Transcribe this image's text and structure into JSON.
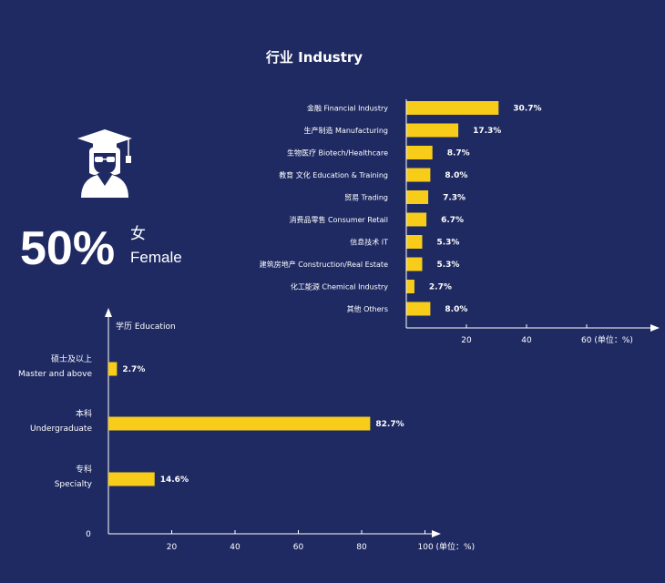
{
  "palette": {
    "background": "#1f2a63",
    "bar": "#f7cd1a",
    "text": "#ffffff"
  },
  "icon": "graduate-icon",
  "gender": {
    "percent": "50%",
    "label_cn": "女",
    "label_en": "Female"
  },
  "chart_data": [
    {
      "type": "bar",
      "orientation": "horizontal",
      "title": "行业  Industry",
      "categories": [
        "金融 Financial Industry",
        "生产制造 Manufacturing",
        "生物医疗 Biotech/Healthcare",
        "教育 文化  Education & Training",
        "贸易 Trading",
        "消费品零售 Consumer Retail",
        "信息技术 IT",
        "建筑房地产 Construction/Real Estate",
        "化工能源 Chemical Industry",
        "其他 Others"
      ],
      "values": [
        30.7,
        17.3,
        8.7,
        8.0,
        7.3,
        6.7,
        5.3,
        5.3,
        2.7,
        8.0
      ],
      "value_labels": [
        "30.7%",
        "17.3%",
        "8.7%",
        "8.0%",
        "7.3%",
        "6.7%",
        "5.3%",
        "5.3%",
        "2.7%",
        "8.0%"
      ],
      "xticks": [
        "20",
        "40",
        "60 (单位：%)"
      ],
      "xtick_values": [
        20,
        40,
        60
      ],
      "xlim": [
        0,
        84
      ]
    },
    {
      "type": "bar",
      "orientation": "horizontal",
      "title": "学历  Education",
      "categories": [
        {
          "cn": "硕士及以上",
          "en": "Master and above"
        },
        {
          "cn": "本科",
          "en": "Undergraduate"
        },
        {
          "cn": "专科",
          "en": "Specialty"
        }
      ],
      "values": [
        2.7,
        82.7,
        14.6
      ],
      "value_labels": [
        "2.7%",
        "82.7%",
        "14.6%"
      ],
      "xticks": [
        "20",
        "40",
        "60",
        "80",
        "100 (单位：%)"
      ],
      "xtick_values": [
        20,
        40,
        60,
        80,
        100
      ],
      "origin_label": "0",
      "xlim": [
        0,
        104
      ]
    }
  ]
}
